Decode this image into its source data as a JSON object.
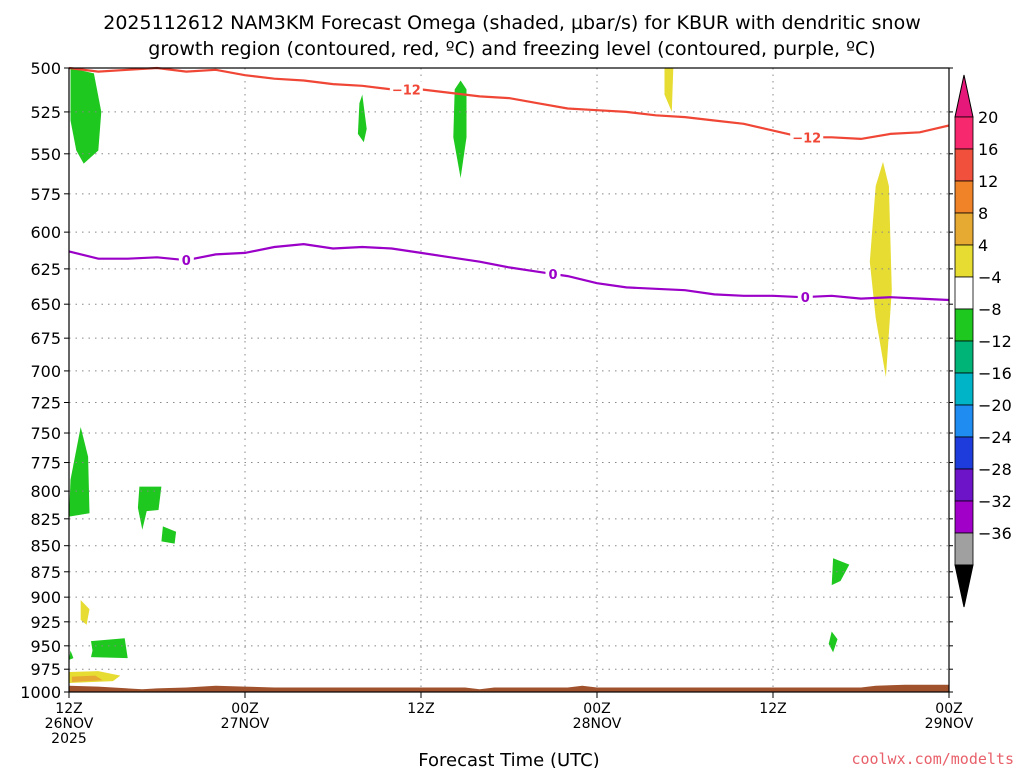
{
  "title_line1": "2025112612 NAM3KM Forecast Omega (shaded, µbar/s) for KBUR with dendritic snow",
  "title_line2": "growth region (contoured, red, ºC) and freezing level (contoured, purple, ºC)",
  "credit": "coolwx.com/modelts",
  "colors": {
    "dgz_line": "#f04636",
    "freezing_line": "#9a00c8",
    "terrain": "#a0522d",
    "grid": "#888888"
  },
  "chart_data": {
    "type": "time-height",
    "xlabel": "Forecast Time (UTC)",
    "x_range_hours": [
      0,
      60
    ],
    "y_range_hpa": [
      500,
      1000
    ],
    "y_scale": "log-pressure",
    "y_ticks": [
      500,
      525,
      550,
      575,
      600,
      625,
      650,
      675,
      700,
      725,
      750,
      775,
      800,
      825,
      850,
      875,
      900,
      925,
      950,
      975,
      1000
    ],
    "x_ticks": [
      {
        "h": 0,
        "line1": "12Z",
        "line2": "26NOV",
        "line3": "2025"
      },
      {
        "h": 12,
        "line1": "00Z",
        "line2": "27NOV",
        "line3": ""
      },
      {
        "h": 24,
        "line1": "12Z",
        "line2": "",
        "line3": ""
      },
      {
        "h": 36,
        "line1": "00Z",
        "line2": "28NOV",
        "line3": ""
      },
      {
        "h": 48,
        "line1": "12Z",
        "line2": "",
        "line3": ""
      },
      {
        "h": 60,
        "line1": "00Z",
        "line2": "29NOV",
        "line3": ""
      }
    ],
    "grid": true,
    "colorbar": {
      "labels": [
        "20",
        "16",
        "12",
        "8",
        "4",
        "-4",
        "-8",
        "-12",
        "-16",
        "-20",
        "-24",
        "-28",
        "-32",
        "-36"
      ],
      "colors": [
        "#f8286e",
        "#f0503c",
        "#f08228",
        "#e6aa32",
        "#e6dc32",
        "#ffffff",
        "#1ec81e",
        "#00b478",
        "#00b4c8",
        "#1e8cf0",
        "#1e3cdc",
        "#6e14c8",
        "#a000c8",
        "#a0a0a0"
      ],
      "top_arrow_color": "#e6187a",
      "bottom_arrow_color": "#000000"
    },
    "series": [
      {
        "name": "-12",
        "label_positions_h": [
          23,
          50.3
        ],
        "points": [
          [
            0,
            500
          ],
          [
            2,
            502
          ],
          [
            4,
            501
          ],
          [
            6,
            500
          ],
          [
            8,
            502
          ],
          [
            10,
            501
          ],
          [
            12,
            504
          ],
          [
            14,
            506
          ],
          [
            16,
            507
          ],
          [
            18,
            509
          ],
          [
            20,
            510
          ],
          [
            22,
            512
          ],
          [
            24,
            512
          ],
          [
            26,
            514
          ],
          [
            28,
            516
          ],
          [
            30,
            517
          ],
          [
            32,
            520
          ],
          [
            34,
            523
          ],
          [
            36,
            524
          ],
          [
            38,
            525
          ],
          [
            40,
            527
          ],
          [
            42,
            528
          ],
          [
            44,
            530
          ],
          [
            46,
            532
          ],
          [
            48,
            536
          ],
          [
            50,
            540
          ],
          [
            52,
            540
          ],
          [
            54,
            541
          ],
          [
            56,
            538
          ],
          [
            58,
            537
          ],
          [
            60,
            533
          ]
        ]
      },
      {
        "name": "0",
        "label_positions_h": [
          8,
          33,
          50.2
        ],
        "points": [
          [
            0,
            613
          ],
          [
            2,
            618
          ],
          [
            4,
            618
          ],
          [
            6,
            617
          ],
          [
            8,
            619
          ],
          [
            10,
            615
          ],
          [
            12,
            614
          ],
          [
            14,
            610
          ],
          [
            16,
            608
          ],
          [
            18,
            611
          ],
          [
            20,
            610
          ],
          [
            22,
            611
          ],
          [
            24,
            614
          ],
          [
            26,
            617
          ],
          [
            28,
            620
          ],
          [
            30,
            624
          ],
          [
            32,
            627
          ],
          [
            34,
            630
          ],
          [
            36,
            635
          ],
          [
            38,
            638
          ],
          [
            40,
            639
          ],
          [
            42,
            640
          ],
          [
            44,
            643
          ],
          [
            46,
            644
          ],
          [
            48,
            644
          ],
          [
            50,
            645
          ],
          [
            52,
            644
          ],
          [
            54,
            646
          ],
          [
            56,
            645
          ],
          [
            58,
            646
          ],
          [
            60,
            647
          ]
        ]
      }
    ],
    "omega_regions": [
      {
        "level": "-8",
        "points": [
          [
            0.1,
            500
          ],
          [
            1.7,
            503
          ],
          [
            2.2,
            525
          ],
          [
            2.0,
            548
          ],
          [
            1.0,
            556
          ],
          [
            0.5,
            548
          ],
          [
            0.1,
            530
          ]
        ]
      },
      {
        "level": "-8",
        "points": [
          [
            20.0,
            515
          ],
          [
            20.3,
            535
          ],
          [
            20.1,
            543
          ],
          [
            19.7,
            538
          ],
          [
            19.8,
            520
          ]
        ]
      },
      {
        "level": "-8",
        "points": [
          [
            26.7,
            507
          ],
          [
            27.1,
            512
          ],
          [
            27.1,
            540
          ],
          [
            26.7,
            565
          ],
          [
            26.2,
            540
          ],
          [
            26.3,
            512
          ]
        ]
      },
      {
        "level": "-8",
        "points": [
          [
            0.8,
            745
          ],
          [
            1.3,
            770
          ],
          [
            1.4,
            820
          ],
          [
            0.0,
            823
          ],
          [
            0.1,
            790
          ]
        ]
      },
      {
        "level": "-8",
        "points": [
          [
            4.8,
            796
          ],
          [
            6.3,
            796
          ],
          [
            6.1,
            817
          ],
          [
            5.3,
            818
          ],
          [
            5.0,
            835
          ],
          [
            4.7,
            815
          ]
        ]
      },
      {
        "level": "-8",
        "points": [
          [
            6.4,
            832
          ],
          [
            7.3,
            837
          ],
          [
            7.2,
            848
          ],
          [
            6.3,
            846
          ]
        ]
      },
      {
        "level": "-8",
        "points": [
          [
            52.1,
            862
          ],
          [
            53.2,
            868
          ],
          [
            52.6,
            884
          ],
          [
            52.0,
            888
          ]
        ]
      },
      {
        "level": "-8",
        "points": [
          [
            52.0,
            935
          ],
          [
            52.4,
            943
          ],
          [
            52.1,
            957
          ],
          [
            51.8,
            948
          ]
        ]
      },
      {
        "level": "-8",
        "points": [
          [
            1.5,
            945
          ],
          [
            3.8,
            942
          ],
          [
            4.0,
            963
          ],
          [
            1.5,
            962
          ],
          [
            1.6,
            955
          ]
        ]
      },
      {
        "level": "-8",
        "points": [
          [
            0.1,
            955
          ],
          [
            0.3,
            963
          ],
          [
            0.0,
            965
          ]
        ]
      },
      {
        "level": "4",
        "points": [
          [
            40.6,
            500
          ],
          [
            41.2,
            500
          ],
          [
            41.1,
            525
          ],
          [
            40.6,
            515
          ]
        ]
      },
      {
        "level": "4",
        "points": [
          [
            55.5,
            555
          ],
          [
            55.9,
            570
          ],
          [
            56.1,
            640
          ],
          [
            55.7,
            705
          ],
          [
            55.0,
            660
          ],
          [
            54.6,
            620
          ],
          [
            55.0,
            570
          ]
        ]
      },
      {
        "level": "4",
        "points": [
          [
            0.8,
            903
          ],
          [
            1.4,
            912
          ],
          [
            1.2,
            928
          ],
          [
            0.8,
            923
          ]
        ]
      },
      {
        "level": "4",
        "points": [
          [
            0.0,
            978
          ],
          [
            2.0,
            977
          ],
          [
            3.5,
            982
          ],
          [
            3.0,
            988
          ],
          [
            0.0,
            990
          ]
        ]
      },
      {
        "level": "8",
        "points": [
          [
            0.2,
            983
          ],
          [
            1.8,
            982
          ],
          [
            2.3,
            987
          ],
          [
            0.2,
            989
          ]
        ]
      }
    ],
    "terrain_top_hpa": [
      [
        0,
        993
      ],
      [
        2,
        994
      ],
      [
        5,
        997
      ],
      [
        6,
        996
      ],
      [
        8,
        995
      ],
      [
        10,
        993
      ],
      [
        12,
        994
      ],
      [
        14,
        995
      ],
      [
        20,
        995
      ],
      [
        27,
        995
      ],
      [
        28,
        997
      ],
      [
        29,
        995
      ],
      [
        34,
        995
      ],
      [
        35,
        993
      ],
      [
        36,
        995
      ],
      [
        45,
        995
      ],
      [
        54,
        995
      ],
      [
        55,
        993
      ],
      [
        57,
        992
      ],
      [
        60,
        992
      ]
    ]
  }
}
